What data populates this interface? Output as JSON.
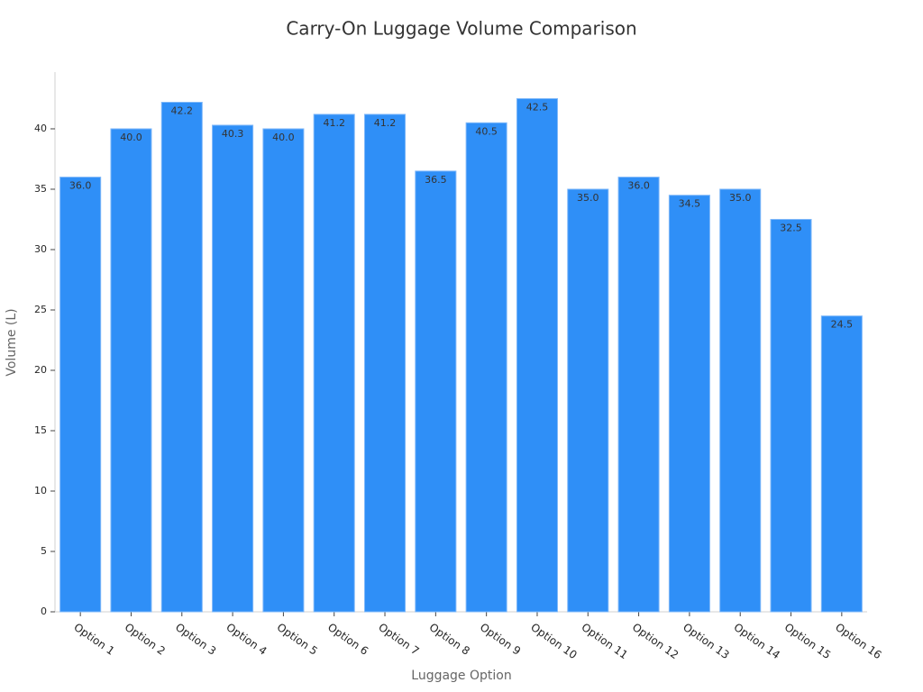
{
  "chart_data": {
    "type": "bar",
    "title": "Carry-On Luggage Volume Comparison",
    "x_label": "Luggage Option",
    "y_label": "Volume (L)",
    "categories": [
      "Option 1",
      "Option 2",
      "Option 3",
      "Option 4",
      "Option 5",
      "Option 6",
      "Option 7",
      "Option 8",
      "Option 9",
      "Option 10",
      "Option 11",
      "Option 12",
      "Option 13",
      "Option 14",
      "Option 15",
      "Option 16"
    ],
    "values": [
      36,
      40,
      42.2,
      40.3,
      40,
      41.2,
      41.2,
      36.5,
      40.5,
      42.5,
      35,
      36,
      34.5,
      35,
      32.5,
      24.5
    ],
    "value_labels": [
      "36.0",
      "40.0",
      "42.2",
      "40.3",
      "40.0",
      "41.2",
      "41.2",
      "36.5",
      "40.5",
      "42.5",
      "35.0",
      "36.0",
      "34.5",
      "35.0",
      "32.5",
      "24.5"
    ],
    "color": "#2f8ff7",
    "ylim": [
      0,
      44.7
    ],
    "yticks": [
      0,
      5,
      10,
      15,
      20,
      25,
      30,
      35,
      40
    ],
    "grid": false
  }
}
